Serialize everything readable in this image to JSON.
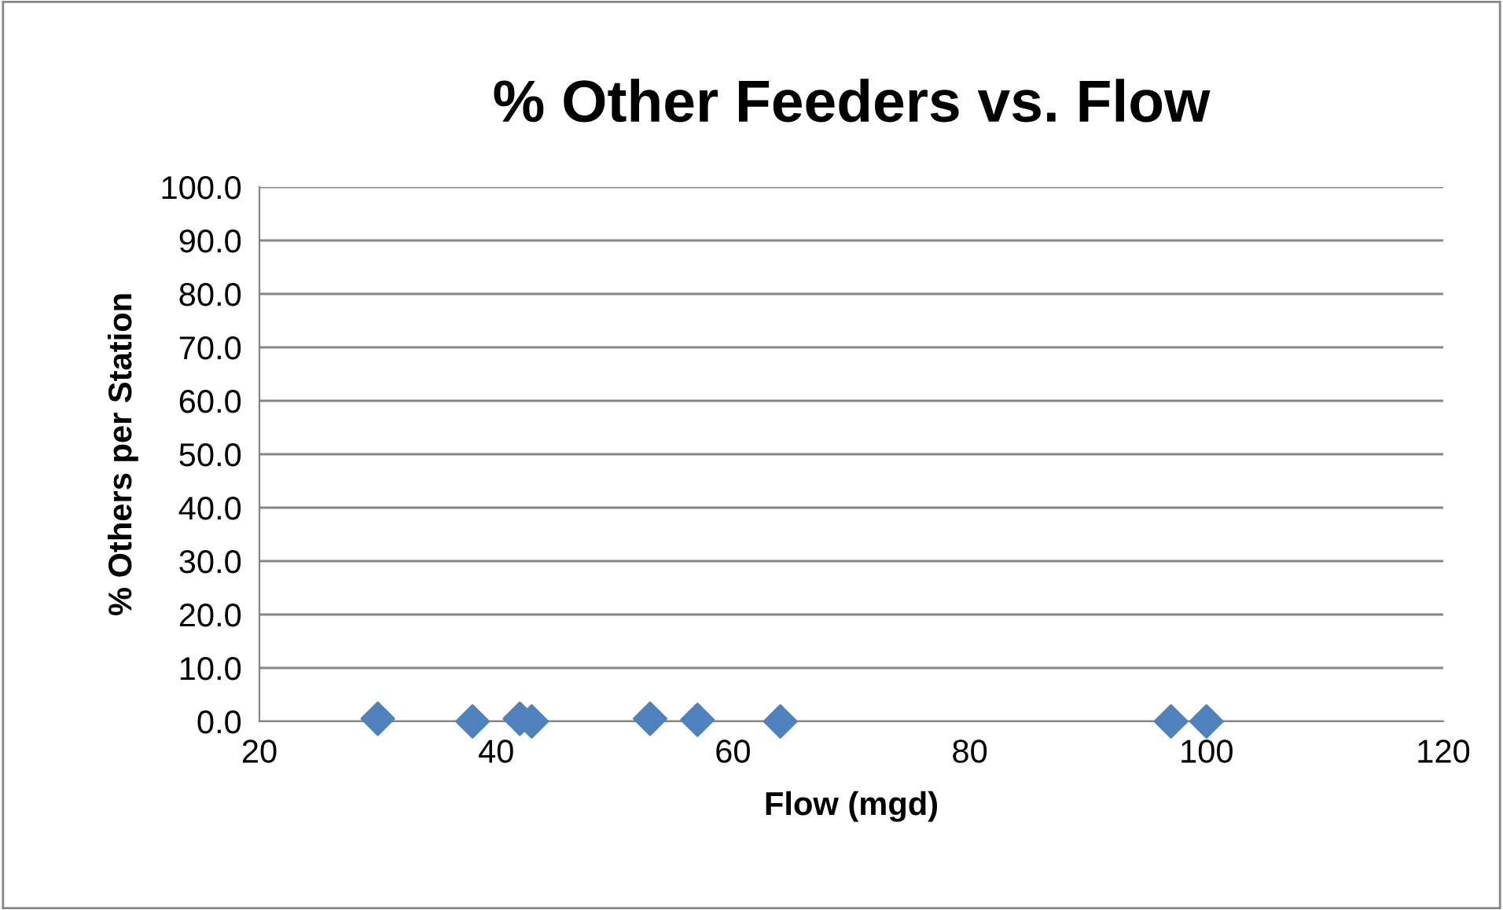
{
  "chart_data": {
    "type": "scatter",
    "title": "% Other Feeders vs. Flow",
    "xlabel": "Flow (mgd)",
    "ylabel": "% Others per Station",
    "series": [
      {
        "color": "#4f81bd",
        "x": [
          30,
          38,
          42,
          43,
          53,
          57,
          64,
          97,
          100
        ],
        "values": [
          0.5,
          0,
          0.5,
          0,
          0.5,
          0.3,
          0,
          0,
          0
        ]
      }
    ],
    "xlim": [
      20,
      120
    ],
    "xticks": [
      20,
      40,
      60,
      80,
      100,
      120
    ],
    "ylim": [
      0,
      100
    ],
    "yticks": [
      {
        "value": 0,
        "label": "0.0"
      },
      {
        "value": 10,
        "label": "10.0"
      },
      {
        "value": 20,
        "label": "20.0"
      },
      {
        "value": 30,
        "label": "30.0"
      },
      {
        "value": 40,
        "label": "40.0"
      },
      {
        "value": 50,
        "label": "50.0"
      },
      {
        "value": 60,
        "label": "60.0"
      },
      {
        "value": 70,
        "label": "70.0"
      },
      {
        "value": 80,
        "label": "80.0"
      },
      {
        "value": 90,
        "label": "90.0"
      },
      {
        "value": 100,
        "label": "100.0"
      }
    ],
    "grid": "y",
    "marker": "diamond"
  }
}
